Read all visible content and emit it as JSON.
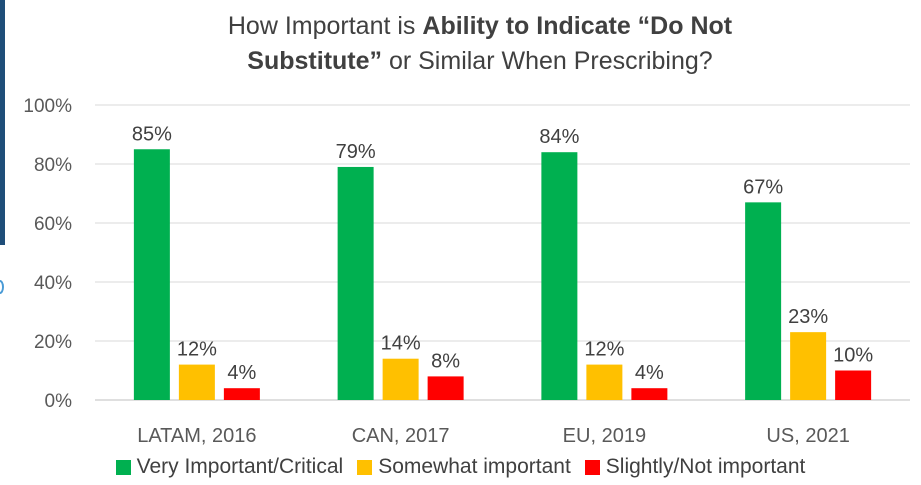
{
  "chart_data": {
    "type": "bar",
    "title_parts": [
      {
        "text": "How Important is ",
        "bold": false
      },
      {
        "text": "Ability to Indicate “Do Not",
        "bold": true
      },
      {
        "text": "\n",
        "bold": false
      },
      {
        "text": "Substitute”",
        "bold": true
      },
      {
        "text": " or Similar When Prescribing?",
        "bold": false
      }
    ],
    "categories": [
      "LATAM, 2016",
      "CAN, 2017",
      "EU, 2019",
      "US, 2021"
    ],
    "series": [
      {
        "name": "Very Important/Critical",
        "color": "#00b050",
        "values": [
          85,
          79,
          84,
          67
        ],
        "labels": [
          "85%",
          "79%",
          "84%",
          "67%"
        ]
      },
      {
        "name": "Somewhat important",
        "color": "#ffc000",
        "values": [
          12,
          14,
          12,
          23
        ],
        "labels": [
          "12%",
          "14%",
          "12%",
          "23%"
        ]
      },
      {
        "name": "Slightly/Not important",
        "color": "#ff0000",
        "values": [
          4,
          8,
          4,
          10
        ],
        "labels": [
          "4%",
          "8%",
          "4%",
          "10%"
        ]
      }
    ],
    "yticks": [
      "0%",
      "20%",
      "40%",
      "60%",
      "80%",
      "100%"
    ],
    "ylim": [
      0,
      100
    ],
    "grid": true,
    "legend_position": "bottom"
  }
}
